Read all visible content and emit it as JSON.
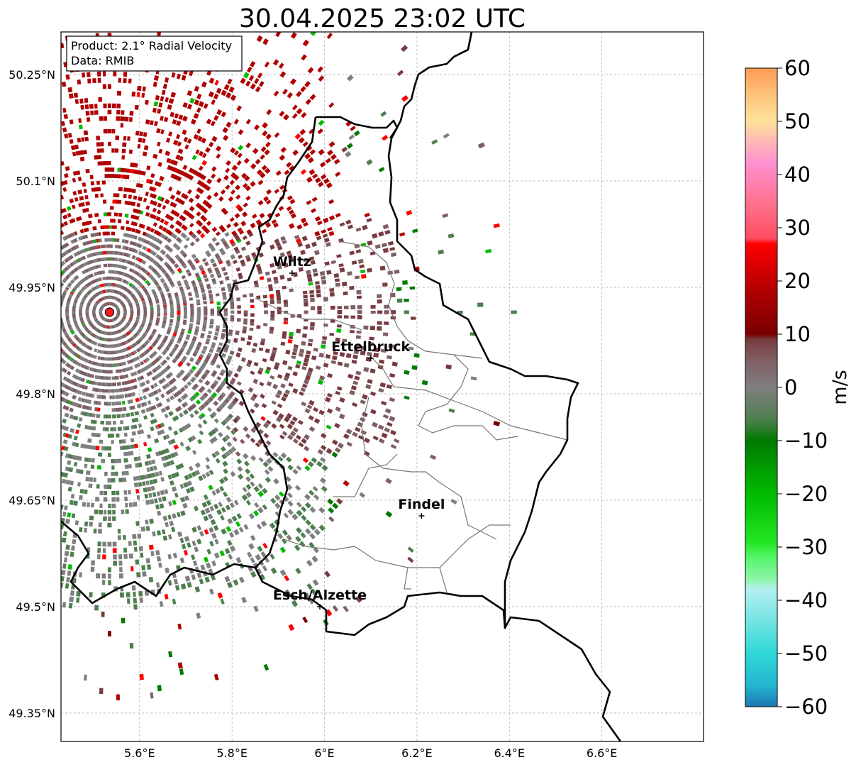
{
  "title": "30.04.2025 23:02 UTC",
  "info_box": {
    "product": "Product: 2.1° Radial Velocity",
    "data": "Data: RMIB"
  },
  "map": {
    "lon_range": [
      5.43,
      6.82
    ],
    "lat_range": [
      49.31,
      50.31
    ],
    "lon_ticks": [
      {
        "value": 5.6,
        "label": "5.6°E"
      },
      {
        "value": 5.8,
        "label": "5.8°E"
      },
      {
        "value": 6.0,
        "label": "6°E"
      },
      {
        "value": 6.2,
        "label": "6.2°E"
      },
      {
        "value": 6.4,
        "label": "6.4°E"
      },
      {
        "value": 6.6,
        "label": "6.6°E"
      }
    ],
    "lat_ticks": [
      {
        "value": 50.25,
        "label": "50.25°N"
      },
      {
        "value": 50.1,
        "label": "50.1°N"
      },
      {
        "value": 49.95,
        "label": "49.95°N"
      },
      {
        "value": 49.8,
        "label": "49.8°N"
      },
      {
        "value": 49.65,
        "label": "49.65°N"
      },
      {
        "value": 49.5,
        "label": "49.5°N"
      },
      {
        "value": 49.35,
        "label": "49.35°N"
      }
    ],
    "radar_site": {
      "lon": 5.535,
      "lat": 49.915
    },
    "cities": [
      {
        "name": "Wiltz",
        "lon": 5.93,
        "lat": 49.97
      },
      {
        "name": "Ettelbruck",
        "lon": 6.1,
        "lat": 49.85
      },
      {
        "name": "Findel",
        "lon": 6.21,
        "lat": 49.628
      },
      {
        "name": "Esch/Alzette",
        "lon": 5.99,
        "lat": 49.5
      }
    ]
  },
  "colorbar": {
    "label": "m/s",
    "min": -60,
    "max": 60,
    "ticks": [
      {
        "value": 60,
        "label": "60"
      },
      {
        "value": 50,
        "label": "50"
      },
      {
        "value": 40,
        "label": "40"
      },
      {
        "value": 30,
        "label": "30"
      },
      {
        "value": 20,
        "label": "20"
      },
      {
        "value": 10,
        "label": "10"
      },
      {
        "value": 0,
        "label": "0"
      },
      {
        "value": -10,
        "label": "−10"
      },
      {
        "value": -20,
        "label": "−20"
      },
      {
        "value": -30,
        "label": "−30"
      },
      {
        "value": -40,
        "label": "−40"
      },
      {
        "value": -50,
        "label": "−50"
      },
      {
        "value": -60,
        "label": "−60"
      }
    ],
    "stops": [
      {
        "value": -60,
        "color": "#1f77b4"
      },
      {
        "value": -56,
        "color": "#22b6cf"
      },
      {
        "value": -50,
        "color": "#2ed8d8"
      },
      {
        "value": -44,
        "color": "#74e3e3"
      },
      {
        "value": -38,
        "color": "#b4f0ef"
      },
      {
        "value": -36,
        "color": "#8cf5a8"
      },
      {
        "value": -32,
        "color": "#55f56a"
      },
      {
        "value": -29,
        "color": "#22e622"
      },
      {
        "value": -20,
        "color": "#00bb00"
      },
      {
        "value": -10,
        "color": "#007a00"
      },
      {
        "value": -6,
        "color": "#4f7f4f"
      },
      {
        "value": 0,
        "color": "#7f7f7f"
      },
      {
        "value": 5,
        "color": "#7f5f64"
      },
      {
        "value": 9,
        "color": "#783c40"
      },
      {
        "value": 10,
        "color": "#7a0000"
      },
      {
        "value": 18,
        "color": "#b00000"
      },
      {
        "value": 27,
        "color": "#ff0000"
      },
      {
        "value": 28,
        "color": "#ff4d63"
      },
      {
        "value": 34,
        "color": "#ff6f88"
      },
      {
        "value": 42,
        "color": "#ff8fcf"
      },
      {
        "value": 46,
        "color": "#ffb6b6"
      },
      {
        "value": 50,
        "color": "#ffe29a"
      },
      {
        "value": 55,
        "color": "#ffc27a"
      },
      {
        "value": 60,
        "color": "#ff9a55"
      }
    ]
  }
}
